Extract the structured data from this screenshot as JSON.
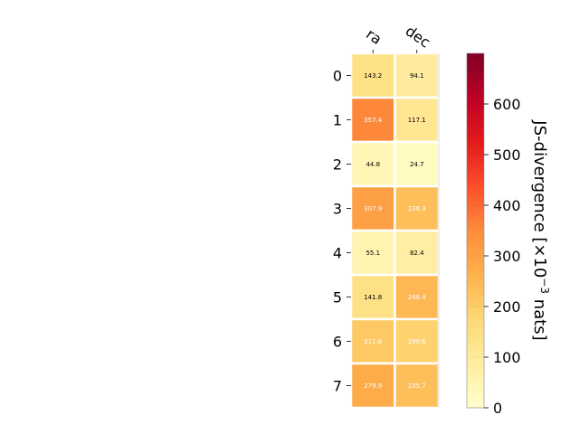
{
  "chart_data": {
    "type": "heatmap",
    "title": "",
    "columns": [
      "ra",
      "dec"
    ],
    "rows": [
      "0",
      "1",
      "2",
      "3",
      "4",
      "5",
      "6",
      "7"
    ],
    "values": [
      [
        143.2,
        94.1
      ],
      [
        357.4,
        117.1
      ],
      [
        44.8,
        24.7
      ],
      [
        307.9,
        236.3
      ],
      [
        55.1,
        82.4
      ],
      [
        141.8,
        248.4
      ],
      [
        211.8,
        190.6
      ],
      [
        279.9,
        235.7
      ]
    ],
    "value_labels": [
      [
        "143.2",
        "94.1"
      ],
      [
        "357.4",
        "117.1"
      ],
      [
        "44.8",
        "24.7"
      ],
      [
        "307.9",
        "236.3"
      ],
      [
        "55.1",
        "82.4"
      ],
      [
        "141.8",
        "248.4"
      ],
      [
        "211.8",
        "190.6"
      ],
      [
        "279.9",
        "235.7"
      ]
    ],
    "colormap": "YlOrRd",
    "colorbar": {
      "label": "JS-divergence [×10",
      "exponent": "−3",
      "unit_suffix": " nats]",
      "range": [
        0,
        700
      ],
      "ticks": [
        0,
        100,
        200,
        300,
        400,
        500,
        600
      ],
      "tick_labels": [
        "0",
        "100",
        "200",
        "300",
        "400",
        "500",
        "600"
      ]
    },
    "label_light_threshold": 180,
    "colors": {
      "dark_text": "#000000",
      "light_text": "#ffffff",
      "cell_border": "#ffffff"
    }
  }
}
